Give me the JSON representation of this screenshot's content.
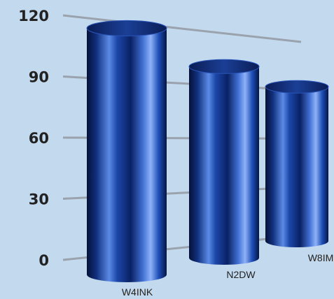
{
  "chart_data": {
    "type": "bar",
    "style": "3d-cylinder",
    "categories": [
      "W4INK",
      "N2DW",
      "W8IM"
    ],
    "values": [
      117,
      101,
      92
    ],
    "title": "",
    "xlabel": "",
    "ylabel": "",
    "ylim": [
      0,
      120
    ],
    "yticks": [
      "0",
      "30",
      "60",
      "90",
      "120"
    ],
    "grid": true,
    "legend": "none",
    "colors": {
      "background": "#c3d9ee",
      "bar_dark": "#05113a",
      "bar_mid": "#1e4fb8",
      "bar_light": "#6f9cf4",
      "gridline": "#9aa3ad"
    }
  }
}
